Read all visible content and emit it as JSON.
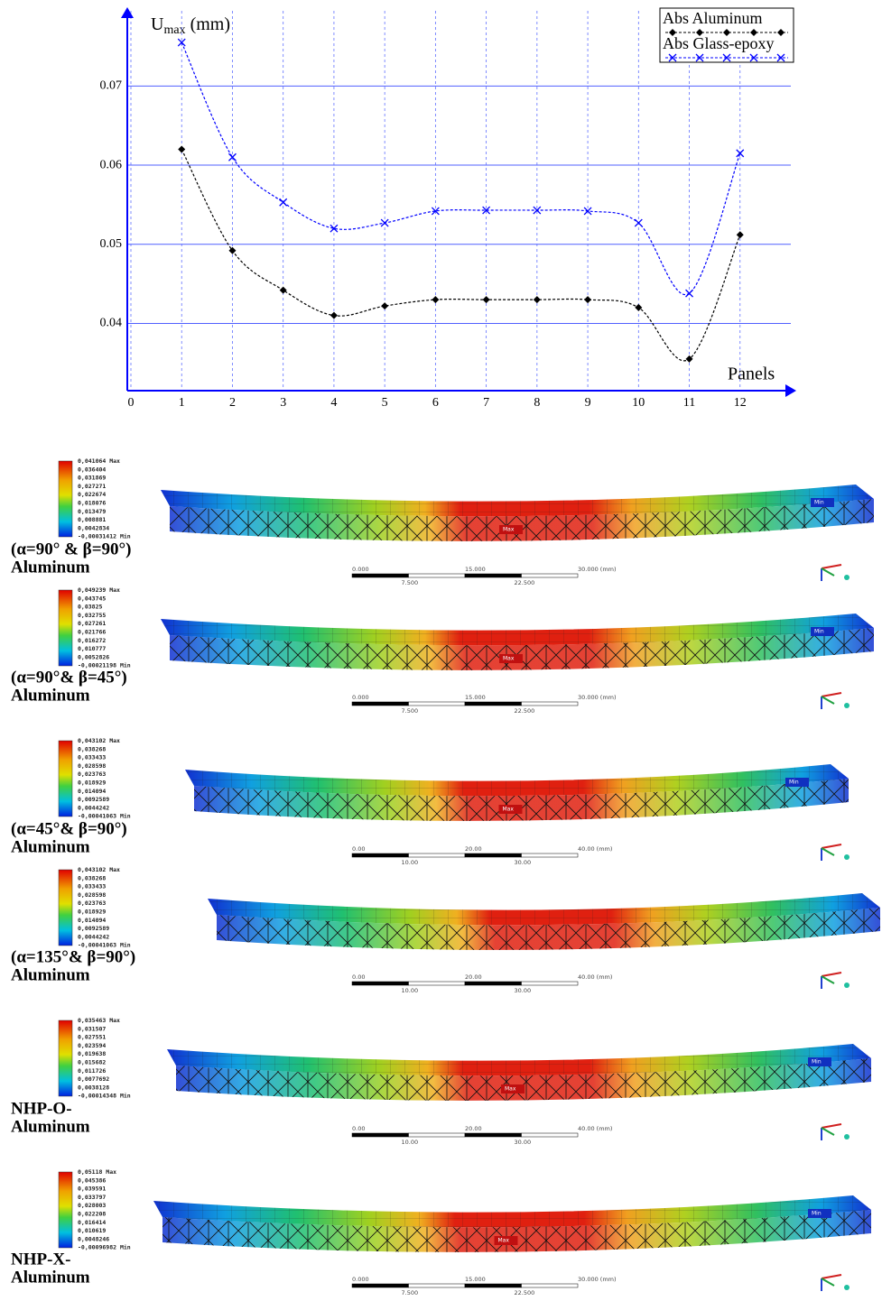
{
  "chart_data": {
    "type": "line",
    "ylabel_symbol": "U",
    "ylabel_subscript": "max",
    "ylabel_unit": "(mm)",
    "xlabel": "Panels",
    "x": [
      1,
      2,
      3,
      4,
      5,
      6,
      7,
      8,
      9,
      10,
      11,
      12
    ],
    "series": [
      {
        "name": "Abs Aluminum",
        "color": "#000000",
        "marker": "diamond",
        "values": [
          0.062,
          0.0492,
          0.0442,
          0.041,
          0.0422,
          0.043,
          0.043,
          0.043,
          0.043,
          0.042,
          0.0355,
          0.0512
        ]
      },
      {
        "name": "Abs Glass-epoxy",
        "color": "#0000ff",
        "marker": "x",
        "values": [
          0.0755,
          0.061,
          0.0553,
          0.052,
          0.0527,
          0.0542,
          0.0543,
          0.0543,
          0.0542,
          0.0527,
          0.0438,
          0.0615
        ]
      }
    ],
    "xlim": [
      0,
      13
    ],
    "xticks": [
      0,
      1,
      2,
      3,
      4,
      5,
      6,
      7,
      8,
      9,
      10,
      11,
      12
    ],
    "ylim": [
      0.0315,
      0.0795
    ],
    "yticks": [
      0.04,
      0.05,
      0.06,
      0.07
    ],
    "grid": true,
    "legend": "upper right"
  },
  "panels": [
    {
      "legend": [
        "0,041064 Max",
        "0,036404",
        "0,031869",
        "0,027271",
        "0,022674",
        "0,018076",
        "0,013479",
        "0,008881",
        "0,0042834",
        "-0,00031412 Min"
      ],
      "label_lines": [
        "(α=90° & β=90°)",
        "Aluminum"
      ],
      "tags": [
        "Max",
        "Min"
      ],
      "scale_top": [
        "0.000",
        "15.000",
        "30.000 (mm)"
      ],
      "scale_bottom": [
        "7.500",
        "22.500"
      ]
    },
    {
      "legend": [
        "0,049239 Max",
        "0,043745",
        "0,03825",
        "0,032755",
        "0,027261",
        "0,021766",
        "0,016272",
        "0,010777",
        "0,0052826",
        "-0,00021198 Min"
      ],
      "label_lines": [
        "(α=90°& β=45°)",
        "Aluminum"
      ],
      "tags": [
        "Max",
        "Min"
      ],
      "scale_top": [
        "0.000",
        "15.000",
        "30.000 (mm)"
      ],
      "scale_bottom": [
        "7.500",
        "22.500"
      ]
    },
    {
      "legend": [
        "0,043102 Max",
        "0,038268",
        "0,033433",
        "0,028598",
        "0,023763",
        "0,018929",
        "0,014094",
        "0,0092589",
        "0,0044242",
        "-0,00041063 Min"
      ],
      "label_lines": [
        "(α=45°& β=90°)",
        "Aluminum"
      ],
      "tags": [
        "Max",
        "Min"
      ],
      "scale_top": [
        "0.00",
        "20.00",
        "40.00 (mm)"
      ],
      "scale_bottom": [
        "10.00",
        "30.00"
      ]
    },
    {
      "legend": [
        "0,043102 Max",
        "0,038268",
        "0,033433",
        "0,028598",
        "0,023763",
        "0,018929",
        "0,014094",
        "0,0092589",
        "0,0044242",
        "-0,00041063 Min"
      ],
      "label_lines": [
        "(α=135°& β=90°)",
        "Aluminum"
      ],
      "tags": [],
      "scale_top": [
        "0.00",
        "20.00",
        "40.00 (mm)"
      ],
      "scale_bottom": [
        "10.00",
        "30.00"
      ]
    },
    {
      "legend": [
        "0,035463 Max",
        "0,031507",
        "0,027551",
        "0,023594",
        "0,019638",
        "0,015682",
        "0,011726",
        "0,0077692",
        "0,0038128",
        "-0,00014348 Min"
      ],
      "label_lines": [
        "NHP-O-",
        "Aluminum"
      ],
      "tags": [
        "Max",
        "Min"
      ],
      "scale_top": [
        "0.00",
        "20.00",
        "40.00 (mm)"
      ],
      "scale_bottom": [
        "10.00",
        "30.00"
      ]
    },
    {
      "legend": [
        "0,05118 Max",
        "0,045386",
        "0,039591",
        "0,033797",
        "0,028003",
        "0,022208",
        "0,016414",
        "0,010619",
        "0,0048246",
        "-0,00096982 Min"
      ],
      "label_lines": [
        "NHP-X-",
        "Aluminum"
      ],
      "tags": [
        "Max",
        "Min"
      ],
      "scale_top": [
        "0.000",
        "15.000",
        "30.000 (mm)"
      ],
      "scale_bottom": [
        "7.500",
        "22.500"
      ]
    }
  ]
}
